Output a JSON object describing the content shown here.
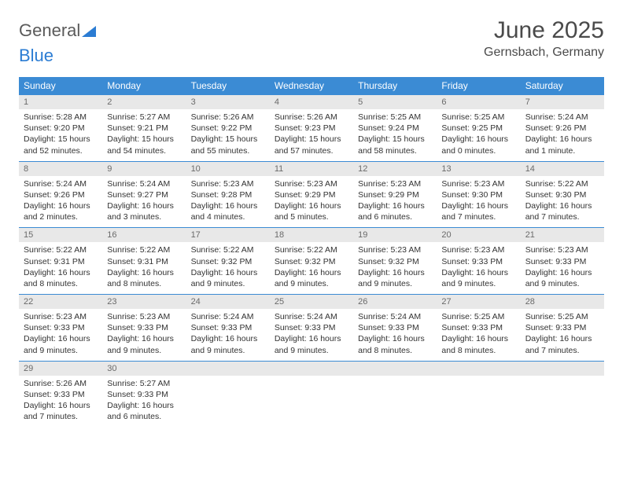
{
  "brand": {
    "part1": "General",
    "part2": "Blue"
  },
  "title": "June 2025",
  "location": "Gernsbach, Germany",
  "colors": {
    "header_bg": "#3b8bd4",
    "header_text": "#ffffff",
    "daynum_bg": "#e8e8e8",
    "daynum_text": "#6a6a6a",
    "rule": "#3b8bd4",
    "body_text": "#333333",
    "brand_gray": "#5a5a5a",
    "brand_blue": "#2b7cd3"
  },
  "weekdays": [
    "Sunday",
    "Monday",
    "Tuesday",
    "Wednesday",
    "Thursday",
    "Friday",
    "Saturday"
  ],
  "weeks": [
    [
      {
        "n": "1",
        "sr": "5:28 AM",
        "ss": "9:20 PM",
        "dl": "15 hours and 52 minutes."
      },
      {
        "n": "2",
        "sr": "5:27 AM",
        "ss": "9:21 PM",
        "dl": "15 hours and 54 minutes."
      },
      {
        "n": "3",
        "sr": "5:26 AM",
        "ss": "9:22 PM",
        "dl": "15 hours and 55 minutes."
      },
      {
        "n": "4",
        "sr": "5:26 AM",
        "ss": "9:23 PM",
        "dl": "15 hours and 57 minutes."
      },
      {
        "n": "5",
        "sr": "5:25 AM",
        "ss": "9:24 PM",
        "dl": "15 hours and 58 minutes."
      },
      {
        "n": "6",
        "sr": "5:25 AM",
        "ss": "9:25 PM",
        "dl": "16 hours and 0 minutes."
      },
      {
        "n": "7",
        "sr": "5:24 AM",
        "ss": "9:26 PM",
        "dl": "16 hours and 1 minute."
      }
    ],
    [
      {
        "n": "8",
        "sr": "5:24 AM",
        "ss": "9:26 PM",
        "dl": "16 hours and 2 minutes."
      },
      {
        "n": "9",
        "sr": "5:24 AM",
        "ss": "9:27 PM",
        "dl": "16 hours and 3 minutes."
      },
      {
        "n": "10",
        "sr": "5:23 AM",
        "ss": "9:28 PM",
        "dl": "16 hours and 4 minutes."
      },
      {
        "n": "11",
        "sr": "5:23 AM",
        "ss": "9:29 PM",
        "dl": "16 hours and 5 minutes."
      },
      {
        "n": "12",
        "sr": "5:23 AM",
        "ss": "9:29 PM",
        "dl": "16 hours and 6 minutes."
      },
      {
        "n": "13",
        "sr": "5:23 AM",
        "ss": "9:30 PM",
        "dl": "16 hours and 7 minutes."
      },
      {
        "n": "14",
        "sr": "5:22 AM",
        "ss": "9:30 PM",
        "dl": "16 hours and 7 minutes."
      }
    ],
    [
      {
        "n": "15",
        "sr": "5:22 AM",
        "ss": "9:31 PM",
        "dl": "16 hours and 8 minutes."
      },
      {
        "n": "16",
        "sr": "5:22 AM",
        "ss": "9:31 PM",
        "dl": "16 hours and 8 minutes."
      },
      {
        "n": "17",
        "sr": "5:22 AM",
        "ss": "9:32 PM",
        "dl": "16 hours and 9 minutes."
      },
      {
        "n": "18",
        "sr": "5:22 AM",
        "ss": "9:32 PM",
        "dl": "16 hours and 9 minutes."
      },
      {
        "n": "19",
        "sr": "5:23 AM",
        "ss": "9:32 PM",
        "dl": "16 hours and 9 minutes."
      },
      {
        "n": "20",
        "sr": "5:23 AM",
        "ss": "9:33 PM",
        "dl": "16 hours and 9 minutes."
      },
      {
        "n": "21",
        "sr": "5:23 AM",
        "ss": "9:33 PM",
        "dl": "16 hours and 9 minutes."
      }
    ],
    [
      {
        "n": "22",
        "sr": "5:23 AM",
        "ss": "9:33 PM",
        "dl": "16 hours and 9 minutes."
      },
      {
        "n": "23",
        "sr": "5:23 AM",
        "ss": "9:33 PM",
        "dl": "16 hours and 9 minutes."
      },
      {
        "n": "24",
        "sr": "5:24 AM",
        "ss": "9:33 PM",
        "dl": "16 hours and 9 minutes."
      },
      {
        "n": "25",
        "sr": "5:24 AM",
        "ss": "9:33 PM",
        "dl": "16 hours and 9 minutes."
      },
      {
        "n": "26",
        "sr": "5:24 AM",
        "ss": "9:33 PM",
        "dl": "16 hours and 8 minutes."
      },
      {
        "n": "27",
        "sr": "5:25 AM",
        "ss": "9:33 PM",
        "dl": "16 hours and 8 minutes."
      },
      {
        "n": "28",
        "sr": "5:25 AM",
        "ss": "9:33 PM",
        "dl": "16 hours and 7 minutes."
      }
    ],
    [
      {
        "n": "29",
        "sr": "5:26 AM",
        "ss": "9:33 PM",
        "dl": "16 hours and 7 minutes."
      },
      {
        "n": "30",
        "sr": "5:27 AM",
        "ss": "9:33 PM",
        "dl": "16 hours and 6 minutes."
      },
      null,
      null,
      null,
      null,
      null
    ]
  ],
  "labels": {
    "sunrise": "Sunrise:",
    "sunset": "Sunset:",
    "daylight": "Daylight:"
  }
}
